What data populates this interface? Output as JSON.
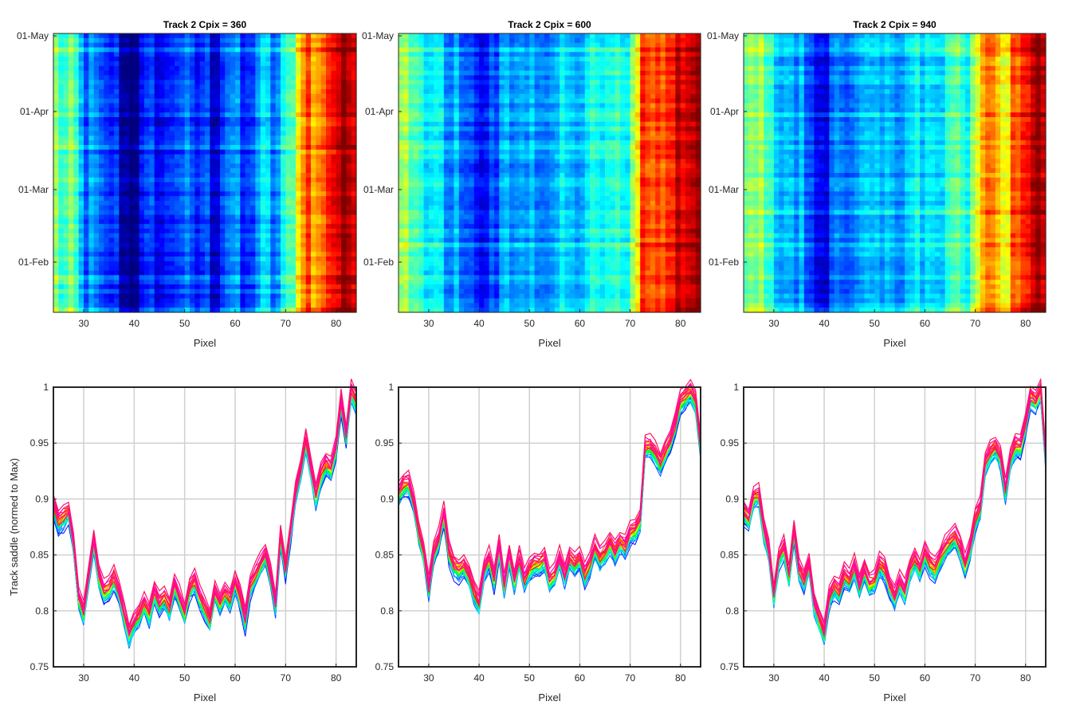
{
  "chart_data": [
    {
      "type": "heatmap",
      "title": "Track 2 Cpix = 360",
      "xlabel": "Pixel",
      "ylabel": "",
      "xlim": [
        24,
        84
      ],
      "ylim": [
        "01-Jan",
        "01-May"
      ],
      "xticks": [
        30,
        40,
        50,
        60,
        70,
        80
      ],
      "yticks": [
        "01-May",
        "01-Apr",
        "01-Mar",
        "01-Feb"
      ],
      "colormap": "jet",
      "grid": false,
      "profile_x": [
        24,
        26,
        28,
        30,
        32,
        34,
        36,
        38,
        40,
        42,
        44,
        46,
        48,
        50,
        52,
        54,
        56,
        58,
        60,
        62,
        64,
        66,
        68,
        70,
        72,
        74,
        76,
        78,
        80,
        82,
        84
      ],
      "profile_values": [
        0.53,
        0.4,
        0.47,
        0.22,
        0.25,
        0.14,
        0.18,
        0.02,
        0.0,
        0.12,
        0.16,
        0.1,
        0.2,
        0.22,
        0.12,
        0.2,
        0.07,
        0.24,
        0.26,
        0.1,
        0.25,
        0.33,
        0.21,
        0.38,
        0.53,
        0.85,
        0.65,
        0.84,
        0.9,
        0.95,
        0.96
      ]
    },
    {
      "type": "heatmap",
      "title": "Track 2 Cpix = 600",
      "xlabel": "Pixel",
      "ylabel": "",
      "xlim": [
        24,
        84
      ],
      "ylim": [
        "01-Jan",
        "01-May"
      ],
      "xticks": [
        30,
        40,
        50,
        60,
        70,
        80
      ],
      "yticks": [
        "01-May",
        "01-Apr",
        "01-Mar",
        "01-Feb"
      ],
      "colormap": "jet",
      "grid": false,
      "profile_x": [
        24,
        26,
        28,
        30,
        32,
        34,
        36,
        38,
        40,
        42,
        44,
        46,
        48,
        50,
        52,
        54,
        56,
        58,
        60,
        62,
        64,
        66,
        68,
        70,
        72,
        74,
        76,
        78,
        80,
        82,
        84
      ],
      "profile_values": [
        0.55,
        0.52,
        0.45,
        0.32,
        0.33,
        0.3,
        0.28,
        0.18,
        0.1,
        0.2,
        0.22,
        0.28,
        0.25,
        0.32,
        0.3,
        0.28,
        0.33,
        0.35,
        0.3,
        0.36,
        0.38,
        0.37,
        0.4,
        0.42,
        0.78,
        0.83,
        0.8,
        0.85,
        0.92,
        0.95,
        0.97
      ]
    },
    {
      "type": "heatmap",
      "title": "Track 2 Cpix = 940",
      "xlabel": "Pixel",
      "ylabel": "",
      "xlim": [
        24,
        84
      ],
      "ylim": [
        "01-Jan",
        "01-May"
      ],
      "xticks": [
        30,
        40,
        50,
        60,
        70,
        80
      ],
      "yticks": [
        "01-May",
        "01-Apr",
        "01-Mar",
        "01-Feb"
      ],
      "colormap": "jet",
      "grid": false,
      "profile_x": [
        24,
        26,
        28,
        30,
        32,
        34,
        36,
        38,
        40,
        42,
        44,
        46,
        48,
        50,
        52,
        54,
        56,
        58,
        60,
        62,
        64,
        66,
        68,
        70,
        72,
        74,
        76,
        78,
        80,
        82,
        84
      ],
      "profile_values": [
        0.5,
        0.45,
        0.55,
        0.3,
        0.35,
        0.28,
        0.3,
        0.1,
        0.08,
        0.2,
        0.22,
        0.25,
        0.28,
        0.3,
        0.26,
        0.3,
        0.28,
        0.33,
        0.35,
        0.36,
        0.38,
        0.42,
        0.4,
        0.48,
        0.72,
        0.78,
        0.62,
        0.8,
        0.85,
        0.92,
        0.97
      ]
    },
    {
      "type": "line",
      "title": "",
      "xlabel": "Pixel",
      "ylabel": "Track saddle (normed to Max)",
      "xlim": [
        24,
        84
      ],
      "ylim": [
        0.75,
        1
      ],
      "xticks": [
        30,
        40,
        50,
        60,
        70,
        80
      ],
      "yticks": [
        0.75,
        0.8,
        0.85,
        0.9,
        0.95,
        1
      ],
      "grid": true,
      "series_count": 40,
      "colormap": "hsv",
      "x": [
        24,
        25,
        26,
        27,
        28,
        29,
        30,
        31,
        32,
        33,
        34,
        35,
        36,
        37,
        38,
        39,
        40,
        41,
        42,
        43,
        44,
        45,
        46,
        47,
        48,
        49,
        50,
        51,
        52,
        53,
        54,
        55,
        56,
        57,
        58,
        59,
        60,
        61,
        62,
        63,
        64,
        65,
        66,
        67,
        68,
        69,
        70,
        71,
        72,
        73,
        74,
        75,
        76,
        77,
        78,
        79,
        80,
        81,
        82,
        83,
        84
      ],
      "values": [
        0.893,
        0.878,
        0.882,
        0.887,
        0.858,
        0.81,
        0.797,
        0.83,
        0.862,
        0.828,
        0.815,
        0.818,
        0.828,
        0.815,
        0.795,
        0.777,
        0.788,
        0.795,
        0.805,
        0.795,
        0.815,
        0.805,
        0.81,
        0.8,
        0.822,
        0.81,
        0.795,
        0.818,
        0.825,
        0.81,
        0.8,
        0.79,
        0.815,
        0.805,
        0.815,
        0.808,
        0.825,
        0.81,
        0.79,
        0.82,
        0.83,
        0.84,
        0.848,
        0.83,
        0.805,
        0.865,
        0.835,
        0.87,
        0.905,
        0.925,
        0.95,
        0.925,
        0.9,
        0.92,
        0.93,
        0.925,
        0.945,
        0.985,
        0.955,
        0.995,
        0.985
      ]
    },
    {
      "type": "line",
      "title": "",
      "xlabel": "Pixel",
      "ylabel": "",
      "xlim": [
        24,
        84
      ],
      "ylim": [
        0.75,
        1
      ],
      "xticks": [
        30,
        40,
        50,
        60,
        70,
        80
      ],
      "yticks": [
        0.75,
        0.8,
        0.85,
        0.9,
        0.95,
        1
      ],
      "grid": true,
      "series_count": 40,
      "colormap": "hsv",
      "x": [
        24,
        25,
        26,
        27,
        28,
        29,
        30,
        31,
        32,
        33,
        34,
        35,
        36,
        37,
        38,
        39,
        40,
        41,
        42,
        43,
        44,
        45,
        46,
        47,
        48,
        49,
        50,
        51,
        52,
        53,
        54,
        55,
        56,
        57,
        58,
        59,
        60,
        61,
        62,
        63,
        64,
        65,
        66,
        67,
        68,
        69,
        70,
        71,
        72,
        73,
        74,
        75,
        76,
        77,
        78,
        79,
        80,
        81,
        82,
        83,
        84
      ],
      "values": [
        0.903,
        0.91,
        0.912,
        0.895,
        0.868,
        0.85,
        0.818,
        0.85,
        0.862,
        0.885,
        0.85,
        0.838,
        0.835,
        0.838,
        0.83,
        0.815,
        0.805,
        0.835,
        0.845,
        0.825,
        0.855,
        0.82,
        0.848,
        0.825,
        0.845,
        0.825,
        0.835,
        0.84,
        0.84,
        0.845,
        0.825,
        0.83,
        0.845,
        0.83,
        0.845,
        0.84,
        0.845,
        0.83,
        0.84,
        0.855,
        0.845,
        0.85,
        0.86,
        0.85,
        0.86,
        0.855,
        0.868,
        0.87,
        0.88,
        0.945,
        0.945,
        0.94,
        0.93,
        0.94,
        0.95,
        0.965,
        0.985,
        0.99,
        0.995,
        0.985,
        0.945
      ]
    },
    {
      "type": "line",
      "title": "",
      "xlabel": "Pixel",
      "ylabel": "",
      "xlim": [
        24,
        84
      ],
      "ylim": [
        0.75,
        1
      ],
      "xticks": [
        30,
        40,
        50,
        60,
        70,
        80
      ],
      "yticks": [
        0.75,
        0.8,
        0.85,
        0.9,
        0.95,
        1
      ],
      "grid": true,
      "series_count": 40,
      "colormap": "hsv",
      "x": [
        24,
        25,
        26,
        27,
        28,
        29,
        30,
        31,
        32,
        33,
        34,
        35,
        36,
        37,
        38,
        39,
        40,
        41,
        42,
        43,
        44,
        45,
        46,
        47,
        48,
        49,
        50,
        51,
        52,
        53,
        54,
        55,
        56,
        57,
        58,
        59,
        60,
        61,
        62,
        63,
        64,
        65,
        66,
        67,
        68,
        69,
        70,
        71,
        72,
        73,
        74,
        75,
        76,
        77,
        78,
        79,
        80,
        81,
        82,
        83,
        84
      ],
      "values": [
        0.887,
        0.88,
        0.9,
        0.902,
        0.87,
        0.852,
        0.812,
        0.845,
        0.855,
        0.83,
        0.87,
        0.835,
        0.825,
        0.84,
        0.805,
        0.79,
        0.778,
        0.81,
        0.82,
        0.815,
        0.83,
        0.825,
        0.838,
        0.82,
        0.835,
        0.822,
        0.825,
        0.84,
        0.835,
        0.82,
        0.81,
        0.825,
        0.815,
        0.835,
        0.845,
        0.835,
        0.85,
        0.84,
        0.835,
        0.845,
        0.855,
        0.86,
        0.865,
        0.855,
        0.838,
        0.855,
        0.88,
        0.89,
        0.93,
        0.94,
        0.945,
        0.935,
        0.905,
        0.935,
        0.945,
        0.945,
        0.965,
        0.99,
        0.985,
        0.995,
        0.935
      ]
    }
  ]
}
